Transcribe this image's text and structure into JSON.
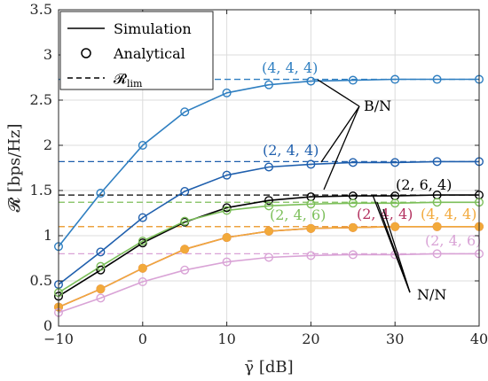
{
  "chart_data": {
    "type": "line",
    "xlabel": "γ̄ [dB]",
    "ylabel": "𝓡 [bps/Hz]",
    "xlim": [
      -10,
      40
    ],
    "ylim": [
      0,
      3.5
    ],
    "xticks": [
      -10,
      0,
      10,
      20,
      30,
      40
    ],
    "yticks": [
      0,
      0.5,
      1,
      1.5,
      2,
      2.5,
      3,
      3.5
    ],
    "grid": true,
    "legend": {
      "position": "top-left",
      "entries": [
        {
          "label": "Simulation",
          "style": "solid"
        },
        {
          "label": "Analytical",
          "style": "circle"
        },
        {
          "label": "𝓡lim",
          "style": "dashed"
        }
      ]
    },
    "x": [
      -10,
      -5,
      0,
      5,
      10,
      15,
      20,
      25,
      30,
      35,
      40
    ],
    "series": [
      {
        "name": "(4, 4, 4)",
        "group": "B/N",
        "color": "#2f7fc1",
        "markerFill": "none",
        "limit": 2.73,
        "values": [
          0.88,
          1.47,
          2.0,
          2.37,
          2.58,
          2.67,
          2.71,
          2.72,
          2.73,
          2.73,
          2.73
        ]
      },
      {
        "name": "(2, 4, 4)",
        "group": "B/N",
        "color": "#1f5fad",
        "markerFill": "none",
        "limit": 1.82,
        "values": [
          0.46,
          0.82,
          1.2,
          1.49,
          1.67,
          1.76,
          1.79,
          1.81,
          1.81,
          1.82,
          1.82
        ]
      },
      {
        "name": "(2, 6, 4)",
        "group": "B/N",
        "color": "#000000",
        "markerFill": "none",
        "limit": 1.45,
        "values": [
          0.33,
          0.62,
          0.92,
          1.15,
          1.31,
          1.39,
          1.43,
          1.44,
          1.44,
          1.45,
          1.45
        ]
      },
      {
        "name": "(2, 4, 6)",
        "group": "N/N",
        "color": "#7cbf5a",
        "markerFill": "none",
        "limit": 1.37,
        "values": [
          0.37,
          0.66,
          0.94,
          1.16,
          1.28,
          1.33,
          1.35,
          1.36,
          1.36,
          1.37,
          1.37
        ]
      },
      {
        "name": "(2, 4, 4)",
        "group": "N/N",
        "color": "#b3305e",
        "markerFill": "#f2a93a",
        "limit": 1.1,
        "values": [
          0.21,
          0.41,
          0.64,
          0.85,
          0.98,
          1.05,
          1.08,
          1.09,
          1.1,
          1.1,
          1.1
        ]
      },
      {
        "name": "(4, 4, 4)",
        "group": "N/N",
        "color": "#f2a93a",
        "markerFill": "#f2a93a",
        "limit": 1.1,
        "values": [
          0.21,
          0.41,
          0.64,
          0.85,
          0.98,
          1.05,
          1.08,
          1.09,
          1.1,
          1.1,
          1.1
        ]
      },
      {
        "name": "(2, 4, 6)",
        "group": "N/N",
        "color": "#d9a3d6",
        "markerFill": "none",
        "limit": 0.8,
        "values": [
          0.15,
          0.31,
          0.49,
          0.62,
          0.71,
          0.76,
          0.78,
          0.79,
          0.79,
          0.8,
          0.8
        ]
      }
    ],
    "annotations": [
      {
        "text": "(4, 4, 4)",
        "color": "#2f7fc1"
      },
      {
        "text": "(2, 4, 4)",
        "color": "#1f5fad"
      },
      {
        "text": "(2, 6, 4)",
        "color": "#000000"
      },
      {
        "text": "(2, 4, 6)",
        "color": "#7cbf5a"
      },
      {
        "text": "(2, 4, 4)",
        "color": "#b3305e"
      },
      {
        "text": "(4, 4, 4)",
        "color": "#f2a93a"
      },
      {
        "text": "(2, 4, 6)",
        "color": "#d9a3d6"
      },
      {
        "text": "B/N",
        "color": "#000000"
      },
      {
        "text": "N/N",
        "color": "#000000"
      }
    ]
  }
}
